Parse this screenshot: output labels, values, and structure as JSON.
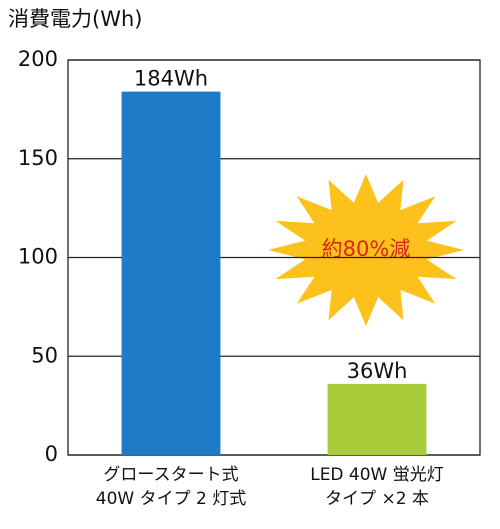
{
  "chart_data": {
    "type": "bar",
    "y_axis_label": "消費電力(Wh)",
    "categories": [
      [
        "グロースタート式",
        "40W タイプ 2 灯式"
      ],
      [
        "LED 40W 蛍光灯",
        "タイプ ×2 本"
      ]
    ],
    "values": [
      184,
      36
    ],
    "value_labels": [
      "184Wh",
      "36Wh"
    ],
    "colors": [
      "#1f7bc6",
      "#a8cb3a"
    ],
    "ylim": [
      0,
      200
    ],
    "yticks": [
      0,
      50,
      100,
      150,
      200
    ],
    "grid": true,
    "annotation": "約80%減"
  }
}
